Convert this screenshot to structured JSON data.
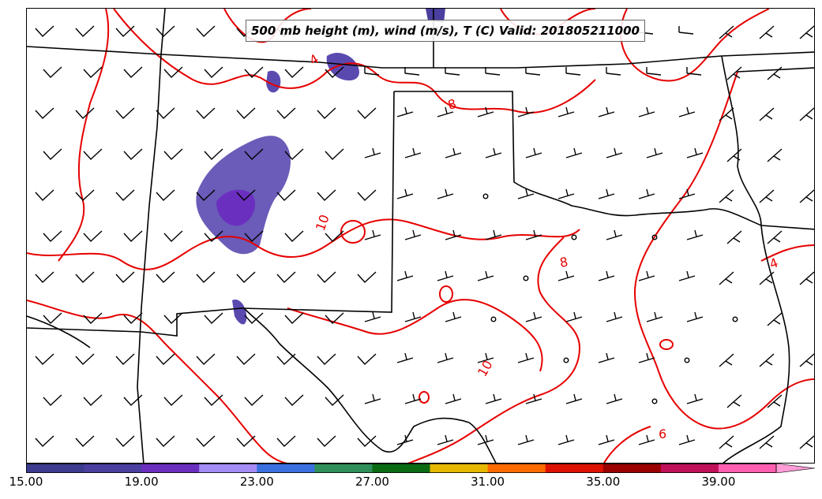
{
  "title": "500 mb height (m), wind (m/s), T (C) Valid: 201805211000",
  "contour_labels": [
    {
      "text": "4",
      "id": "contour-label-4-north"
    },
    {
      "text": "8",
      "id": "contour-label-8-panhandle"
    },
    {
      "text": "10",
      "id": "contour-label-10-nm"
    },
    {
      "text": "8",
      "id": "contour-label-8-central"
    },
    {
      "text": "10",
      "id": "contour-label-10-south"
    },
    {
      "text": "6",
      "id": "contour-label-6-southeast"
    },
    {
      "text": "4",
      "id": "contour-label-4-east"
    }
  ],
  "colorbar": {
    "ticks": [
      "15.00",
      "19.00",
      "23.00",
      "27.00",
      "31.00",
      "35.00",
      "39.00"
    ],
    "colors": [
      "#3c3b8f",
      "#4a3f9f",
      "#6b2fbf",
      "#a58cf5",
      "#3a6fe0",
      "#2f8f5a",
      "#0b6b12",
      "#e6b800",
      "#ff6a00",
      "#dd1100",
      "#9b0000",
      "#c0105a",
      "#ff5fb0",
      "#ff9bd6"
    ],
    "range": [
      15,
      42
    ]
  },
  "map": {
    "contour_color": "#e60000",
    "radar_color": "#5a4ab0",
    "border_color": "#000000"
  }
}
